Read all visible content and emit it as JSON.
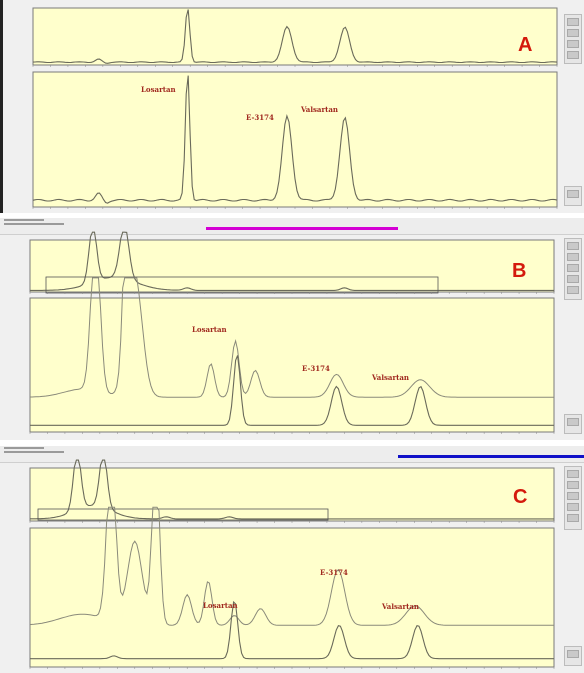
{
  "chart_data": [
    {
      "type": "line",
      "panel": "A",
      "letter": "A",
      "peaks": [
        {
          "name": "Losartan",
          "rt": 0.295,
          "height": 0.96
        },
        {
          "name": "E-3174",
          "rt": 0.485,
          "height": 0.62
        },
        {
          "name": "Valsartan",
          "rt": 0.595,
          "height": 0.61
        }
      ],
      "labels": [
        "Losartan",
        "E-3174",
        "Valsartan"
      ],
      "colors": {
        "plot_bg": "#ffffcc",
        "trace": "#6a6a5a",
        "label": "#a0281e",
        "letter": "#d41a0c"
      }
    },
    {
      "type": "line",
      "panel": "B",
      "letter": "B",
      "topbar_accent": "#d400d4",
      "peaks": [
        {
          "name": "Losartan",
          "rt": 0.395,
          "height": 0.53
        },
        {
          "name": "E-3174",
          "rt": 0.585,
          "height": 0.29
        },
        {
          "name": "Valsartan",
          "rt": 0.745,
          "height": 0.29
        }
      ],
      "labels": [
        "Losartan",
        "E-3174",
        "Valsartan"
      ],
      "colors": {
        "plot_bg": "#ffffcc",
        "trace": "#6a6a5a",
        "label": "#a0281e",
        "letter": "#d41a0c"
      }
    },
    {
      "type": "line",
      "panel": "C",
      "letter": "C",
      "topbar_accent": "#1010c8",
      "peaks": [
        {
          "name": "Losartan",
          "rt": 0.39,
          "height": 0.42
        },
        {
          "name": "E-3174",
          "rt": 0.59,
          "height": 0.24
        },
        {
          "name": "Valsartan",
          "rt": 0.74,
          "height": 0.24
        }
      ],
      "labels": [
        "Losartan",
        "E-3174",
        "Valsartan"
      ],
      "colors": {
        "plot_bg": "#ffffcc",
        "trace": "#6a6a5a",
        "label": "#a0281e",
        "letter": "#d41a0c"
      }
    }
  ]
}
